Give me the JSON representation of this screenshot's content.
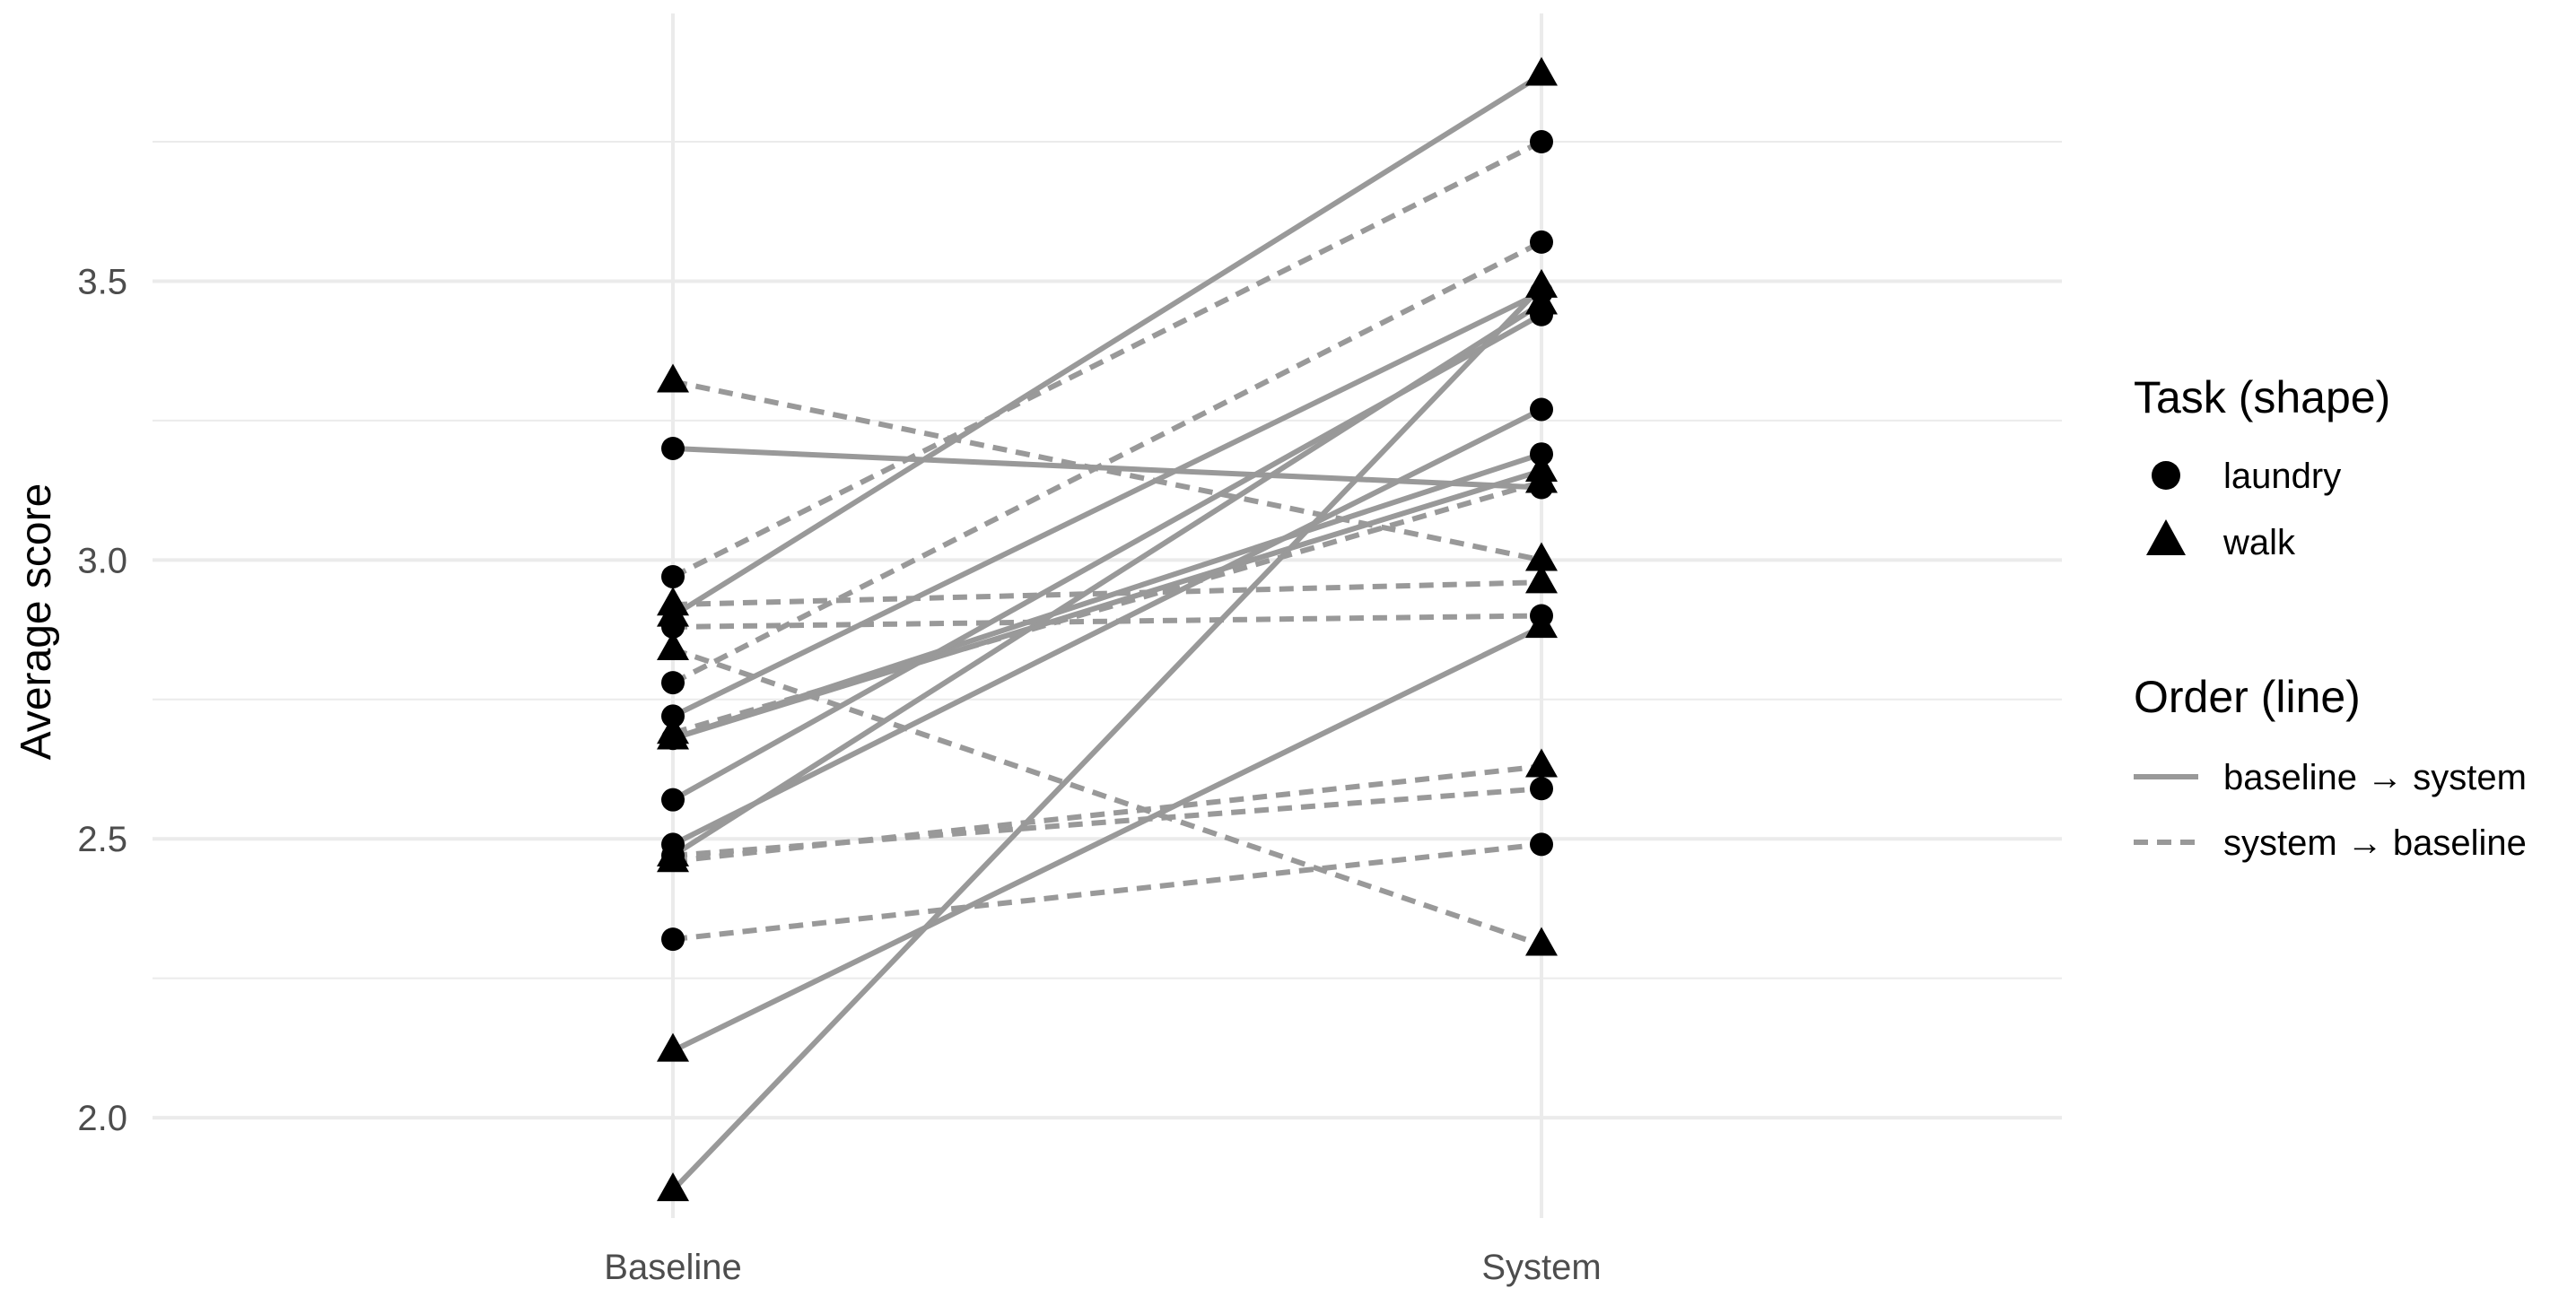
{
  "chart_data": {
    "type": "line",
    "xlabel": "",
    "ylabel": "Average score",
    "categories": [
      "Baseline",
      "System"
    ],
    "ylim": [
      1.82,
      3.98
    ],
    "yticks": [
      2.0,
      2.5,
      3.0,
      3.5
    ],
    "ytick_labels": [
      "2.0",
      "2.5",
      "3.0",
      "3.5"
    ],
    "grid": true,
    "legend_position": "right",
    "colors": {
      "line": "#999999",
      "point": "#000000",
      "grid": "#ebebeb"
    },
    "legend": {
      "shape_title": "Task (shape)",
      "shape_items": [
        {
          "label": "laundry",
          "shape": "circle"
        },
        {
          "label": "walk",
          "shape": "triangle"
        }
      ],
      "line_title": "Order (line)",
      "line_items": [
        {
          "label": "baseline → system",
          "linetype": "solid"
        },
        {
          "label": "system → baseline",
          "linetype": "dashed"
        }
      ]
    },
    "series": [
      {
        "task": "walk",
        "order": "solid",
        "values": [
          2.9,
          3.87
        ]
      },
      {
        "task": "laundry",
        "order": "solid",
        "values": [
          3.2,
          3.13
        ]
      },
      {
        "task": "laundry",
        "order": "solid",
        "values": [
          2.72,
          3.48
        ]
      },
      {
        "task": "laundry",
        "order": "solid",
        "values": [
          2.68,
          3.19
        ]
      },
      {
        "task": "walk",
        "order": "solid",
        "values": [
          2.68,
          3.16
        ]
      },
      {
        "task": "laundry",
        "order": "solid",
        "values": [
          2.57,
          3.44
        ]
      },
      {
        "task": "walk",
        "order": "solid",
        "values": [
          2.47,
          3.46
        ]
      },
      {
        "task": "laundry",
        "order": "solid",
        "values": [
          2.49,
          3.27
        ]
      },
      {
        "task": "walk",
        "order": "solid",
        "values": [
          2.12,
          2.88
        ]
      },
      {
        "task": "walk",
        "order": "solid",
        "values": [
          1.87,
          3.49
        ]
      },
      {
        "task": "laundry",
        "order": "dashed",
        "values": [
          2.97,
          3.75
        ]
      },
      {
        "task": "walk",
        "order": "dashed",
        "values": [
          3.32,
          3.0
        ]
      },
      {
        "task": "walk",
        "order": "dashed",
        "values": [
          2.92,
          2.96
        ]
      },
      {
        "task": "laundry",
        "order": "dashed",
        "values": [
          2.88,
          2.9
        ]
      },
      {
        "task": "laundry",
        "order": "dashed",
        "values": [
          2.78,
          3.57
        ]
      },
      {
        "task": "walk",
        "order": "dashed",
        "values": [
          2.84,
          2.31
        ]
      },
      {
        "task": "walk",
        "order": "dashed",
        "values": [
          2.69,
          3.14
        ]
      },
      {
        "task": "walk",
        "order": "dashed",
        "values": [
          2.46,
          2.63
        ]
      },
      {
        "task": "laundry",
        "order": "dashed",
        "values": [
          2.47,
          2.59
        ]
      },
      {
        "task": "laundry",
        "order": "dashed",
        "values": [
          2.32,
          2.49
        ]
      }
    ]
  }
}
